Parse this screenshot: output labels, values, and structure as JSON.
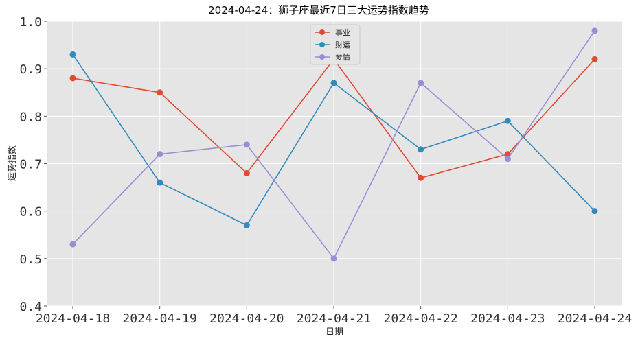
{
  "chart_data": {
    "type": "line",
    "title": "2024-04-24：狮子座最近7日三大运势指数趋势",
    "xlabel": "日期",
    "ylabel": "运势指数",
    "categories": [
      "2024-04-18",
      "2024-04-19",
      "2024-04-20",
      "2024-04-21",
      "2024-04-22",
      "2024-04-23",
      "2024-04-24"
    ],
    "ylim": [
      0.4,
      1.0
    ],
    "yticks": [
      "0.4",
      "0.5",
      "0.6",
      "0.7",
      "0.8",
      "0.9",
      "1.0"
    ],
    "grid": true,
    "legend_position": "top-center",
    "series": [
      {
        "name": "事业",
        "color": "#E24A33",
        "values": [
          0.88,
          0.85,
          0.68,
          0.92,
          0.67,
          0.72,
          0.92
        ]
      },
      {
        "name": "财运",
        "color": "#348ABD",
        "values": [
          0.93,
          0.66,
          0.57,
          0.87,
          0.73,
          0.79,
          0.6
        ]
      },
      {
        "name": "爱情",
        "color": "#988ED5",
        "values": [
          0.53,
          0.72,
          0.74,
          0.5,
          0.87,
          0.71,
          0.98
        ]
      }
    ]
  }
}
